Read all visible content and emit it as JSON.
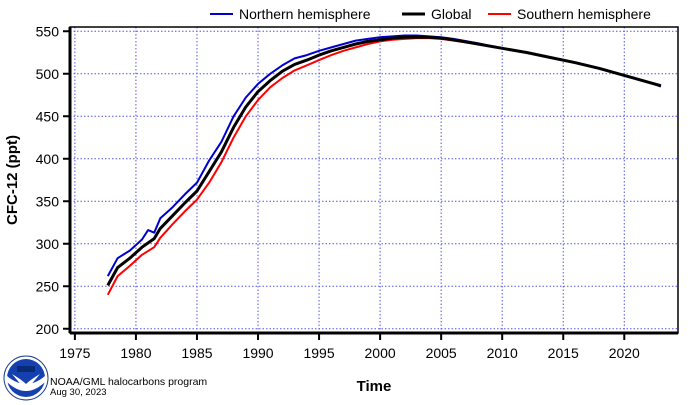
{
  "chart_data": {
    "type": "line",
    "title": "",
    "xlabel": "Time",
    "ylabel": "CFC-12 (ppt)",
    "xlim": [
      1974.6,
      2024.4
    ],
    "ylim": [
      195,
      555
    ],
    "xticks": [
      1975,
      1980,
      1985,
      1990,
      1995,
      2000,
      2005,
      2010,
      2015,
      2020
    ],
    "yticks": [
      200,
      250,
      300,
      350,
      400,
      450,
      500,
      550
    ],
    "grid": true,
    "legend_position": "top",
    "series": [
      {
        "name": "Northern hemisphere",
        "color": "#0000cc",
        "x": [
          1977.7,
          1978.5,
          1979.5,
          1980.5,
          1981,
          1981.5,
          1982,
          1983,
          1984,
          1985,
          1986,
          1987,
          1988,
          1989,
          1990,
          1991,
          1992,
          1993,
          1994,
          1995,
          1996,
          1997,
          1998,
          1999,
          2000,
          2001,
          2002,
          2003,
          2004,
          2005,
          2006,
          2008,
          2010,
          2012,
          2014,
          2016,
          2018,
          2020,
          2022,
          2023
        ],
        "y": [
          262,
          283,
          292,
          305,
          316,
          313,
          330,
          343,
          358,
          372,
          398,
          420,
          450,
          472,
          488,
          500,
          510,
          518,
          522,
          527,
          531,
          535,
          539,
          541,
          543,
          544,
          545,
          545,
          544,
          543,
          541,
          536,
          530,
          525,
          519,
          513,
          506,
          498,
          490,
          485
        ]
      },
      {
        "name": "Global",
        "color": "#000000",
        "x": [
          1977.7,
          1978.5,
          1979.5,
          1980.5,
          1981.5,
          1982,
          1983,
          1984,
          1985,
          1986,
          1987,
          1988,
          1989,
          1990,
          1991,
          1992,
          1993,
          1994,
          1995,
          1996,
          1997,
          1998,
          1999,
          2000,
          2001,
          2002,
          2003,
          2004,
          2005,
          2006,
          2008,
          2010,
          2012,
          2014,
          2016,
          2018,
          2020,
          2022,
          2023
        ],
        "y": [
          251,
          272,
          283,
          296,
          306,
          318,
          333,
          348,
          362,
          385,
          408,
          437,
          461,
          479,
          492,
          503,
          511,
          516,
          522,
          527,
          531,
          535,
          538,
          540,
          542,
          543,
          543,
          543,
          542,
          540,
          535,
          530,
          525,
          519,
          513,
          506,
          498,
          490,
          486
        ]
      },
      {
        "name": "Southern hemisphere",
        "color": "#ff0000",
        "x": [
          1977.7,
          1978.5,
          1979.5,
          1980.5,
          1981.5,
          1982,
          1983,
          1984,
          1985,
          1986,
          1987,
          1988,
          1989,
          1990,
          1991,
          1992,
          1993,
          1994,
          1995,
          1996,
          1997,
          1998,
          1999,
          2000,
          2001,
          2002,
          2003,
          2004,
          2005,
          2006,
          2008,
          2010,
          2012,
          2014,
          2016,
          2018,
          2020,
          2022,
          2023
        ],
        "y": [
          240,
          262,
          274,
          287,
          296,
          307,
          323,
          338,
          352,
          372,
          396,
          425,
          450,
          469,
          484,
          495,
          504,
          510,
          516,
          522,
          527,
          531,
          535,
          538,
          540,
          541,
          542,
          542,
          541,
          539,
          535,
          530,
          525,
          519,
          513,
          506,
          498,
          490,
          486
        ]
      }
    ]
  },
  "credit": {
    "program": "NOAA/GML halocarbons program",
    "date": "Aug 30, 2023",
    "logo_text": "NOAA"
  }
}
